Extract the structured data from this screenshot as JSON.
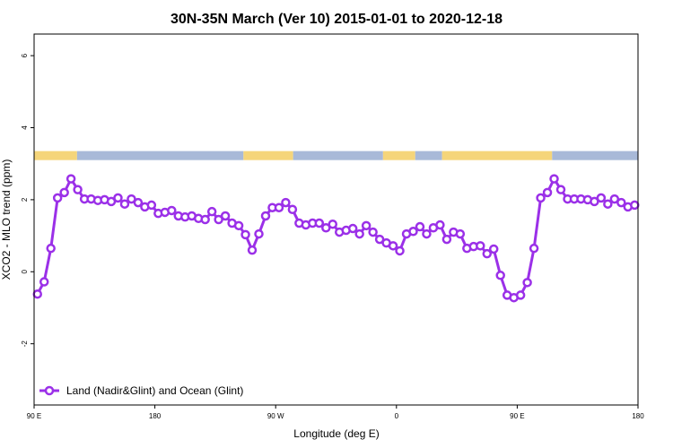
{
  "chart_data": {
    "type": "line",
    "title": "30N-35N March (Ver 10)   2015-01-01 to 2020-12-18",
    "xlabel": "Longitude (deg E)",
    "ylabel": "XCO2 - MLO trend (ppm)",
    "x_ticks": [
      {
        "value": 90,
        "label": "90 E"
      },
      {
        "value": 180,
        "label": "180"
      },
      {
        "value": 270,
        "label": "90 W"
      },
      {
        "value": 360,
        "label": "0"
      },
      {
        "value": 450,
        "label": "90 E"
      },
      {
        "value": 540,
        "label": "180"
      }
    ],
    "y_ticks": [
      -2,
      0,
      2,
      4,
      6
    ],
    "xlim": [
      90,
      540
    ],
    "ylim": [
      -3.7,
      6.6
    ],
    "grid": false,
    "legend_position": "bottom-left",
    "colors": {
      "series": "#9b30e8",
      "land": "#f5d57a",
      "ocean": "#a8b9d8"
    },
    "surface_band": {
      "y_min": 3.1,
      "y_max": 3.35,
      "segments": [
        {
          "start": 90,
          "end": 122,
          "type": "land"
        },
        {
          "start": 122,
          "end": 246,
          "type": "ocean"
        },
        {
          "start": 246,
          "end": 283,
          "type": "land"
        },
        {
          "start": 283,
          "end": 350,
          "type": "ocean"
        },
        {
          "start": 350,
          "end": 374,
          "type": "land"
        },
        {
          "start": 374,
          "end": 394,
          "type": "ocean"
        },
        {
          "start": 394,
          "end": 476,
          "type": "land"
        },
        {
          "start": 476,
          "end": 540,
          "type": "ocean"
        }
      ]
    },
    "series": [
      {
        "name": "Land (Nadir&Glint) and Ocean (Glint)",
        "x": [
          92.5,
          97.5,
          102.5,
          107.5,
          112.5,
          117.5,
          122.5,
          127.5,
          132.5,
          137.5,
          142.5,
          147.5,
          152.5,
          157.5,
          162.5,
          167.5,
          172.5,
          177.5,
          182.5,
          187.5,
          192.5,
          197.5,
          202.5,
          207.5,
          212.5,
          217.5,
          222.5,
          227.5,
          232.5,
          237.5,
          242.5,
          247.5,
          252.5,
          257.5,
          262.5,
          267.5,
          272.5,
          277.5,
          282.5,
          287.5,
          292.5,
          297.5,
          302.5,
          307.5,
          312.5,
          317.5,
          322.5,
          327.5,
          332.5,
          337.5,
          342.5,
          347.5,
          352.5,
          357.5,
          362.5,
          367.5,
          372.5,
          377.5,
          382.5,
          387.5,
          392.5,
          397.5,
          402.5,
          407.5,
          412.5,
          417.5,
          422.5,
          427.5,
          432.5,
          437.5,
          442.5,
          447.5,
          452.5,
          457.5,
          462.5,
          467.5,
          472.5,
          477.5,
          482.5,
          487.5,
          492.5,
          497.5,
          502.5,
          507.5,
          512.5,
          517.5,
          522.5,
          527.5,
          532.5,
          537.5
        ],
        "y": [
          -0.62,
          -0.28,
          0.65,
          2.05,
          2.2,
          2.58,
          2.28,
          2.02,
          2.02,
          1.98,
          2.0,
          1.95,
          2.05,
          1.88,
          2.02,
          1.92,
          1.8,
          1.85,
          1.62,
          1.65,
          1.7,
          1.55,
          1.52,
          1.55,
          1.48,
          1.45,
          1.67,
          1.45,
          1.55,
          1.35,
          1.28,
          1.03,
          0.6,
          1.05,
          1.55,
          1.78,
          1.78,
          1.92,
          1.73,
          1.35,
          1.3,
          1.35,
          1.35,
          1.22,
          1.32,
          1.1,
          1.15,
          1.2,
          1.05,
          1.28,
          1.1,
          0.9,
          0.8,
          0.72,
          0.58,
          1.05,
          1.12,
          1.25,
          1.05,
          1.22,
          1.3,
          0.9,
          1.1,
          1.05,
          0.65,
          0.7,
          0.72,
          0.5,
          0.63,
          -0.1,
          -0.65,
          -0.72,
          -0.65,
          -0.3,
          0.65,
          2.05,
          2.2,
          2.58,
          2.28,
          2.02,
          2.02,
          2.02,
          2.0,
          1.95,
          2.05,
          1.88,
          2.02,
          1.92,
          1.8,
          1.85
        ]
      }
    ]
  }
}
